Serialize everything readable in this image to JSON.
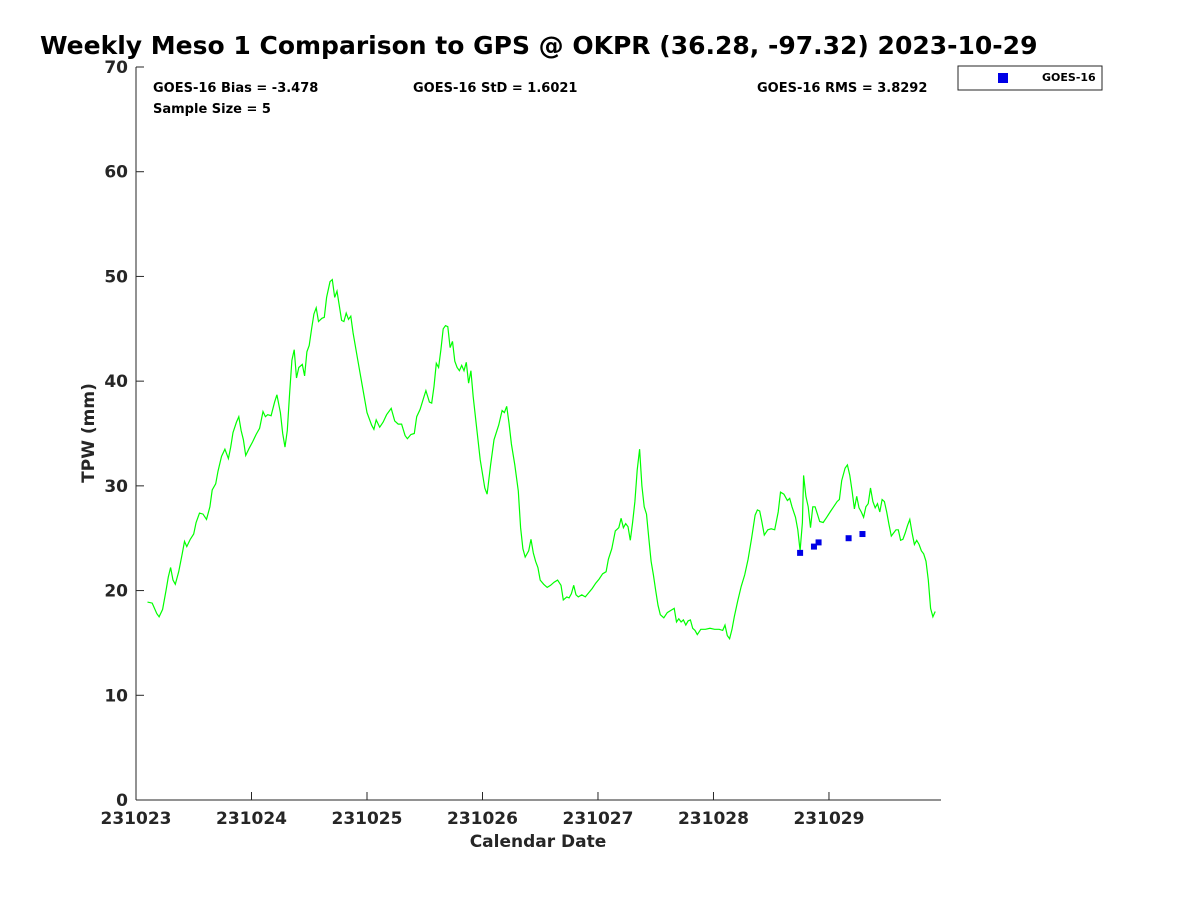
{
  "chart_data": {
    "type": "line",
    "title": "Weekly Meso 1 Comparison to GPS @ OKPR (36.28, -97.32) 2023-10-29",
    "xlabel": "Calendar Date",
    "ylabel": "TPW (mm)",
    "xlim": [
      0,
      6.97
    ],
    "ylim": [
      0,
      70
    ],
    "x_ticks": [
      {
        "value": 0,
        "label": "231023"
      },
      {
        "value": 1,
        "label": "231024"
      },
      {
        "value": 2,
        "label": "231025"
      },
      {
        "value": 3,
        "label": "231026"
      },
      {
        "value": 4,
        "label": "231027"
      },
      {
        "value": 5,
        "label": "231028"
      },
      {
        "value": 6,
        "label": "231029"
      }
    ],
    "y_ticks": [
      0,
      10,
      20,
      30,
      40,
      50,
      60,
      70
    ],
    "grid": false,
    "stats": {
      "bias": "GOES-16 Bias = -3.478",
      "std": "GOES-16 StD = 1.6021",
      "rms": "GOES-16 RMS = 3.8292",
      "sample": "Sample Size = 5"
    },
    "legend": {
      "position": "outside-top-right",
      "label": "GOES-16"
    },
    "series": [
      {
        "name": "GPS",
        "kind": "line",
        "color": "#00ff00",
        "points": [
          [
            0.1,
            18.9
          ],
          [
            0.14,
            18.8
          ],
          [
            0.18,
            17.8
          ],
          [
            0.2,
            17.5
          ],
          [
            0.23,
            18.2
          ],
          [
            0.26,
            20.0
          ],
          [
            0.28,
            21.3
          ],
          [
            0.3,
            22.2
          ],
          [
            0.32,
            21.0
          ],
          [
            0.34,
            20.6
          ],
          [
            0.37,
            21.8
          ],
          [
            0.4,
            23.5
          ],
          [
            0.42,
            24.7
          ],
          [
            0.44,
            24.2
          ],
          [
            0.47,
            24.9
          ],
          [
            0.5,
            25.4
          ],
          [
            0.52,
            26.5
          ],
          [
            0.55,
            27.4
          ],
          [
            0.58,
            27.3
          ],
          [
            0.61,
            26.8
          ],
          [
            0.64,
            28.0
          ],
          [
            0.66,
            29.6
          ],
          [
            0.69,
            30.2
          ],
          [
            0.71,
            31.4
          ],
          [
            0.74,
            32.8
          ],
          [
            0.77,
            33.5
          ],
          [
            0.8,
            32.6
          ],
          [
            0.82,
            33.7
          ],
          [
            0.84,
            35.1
          ],
          [
            0.87,
            36.1
          ],
          [
            0.89,
            36.6
          ],
          [
            0.91,
            35.3
          ],
          [
            0.93,
            34.4
          ],
          [
            0.95,
            32.9
          ],
          [
            0.98,
            33.6
          ],
          [
            1.01,
            34.2
          ],
          [
            1.04,
            34.9
          ],
          [
            1.07,
            35.5
          ],
          [
            1.1,
            37.1
          ],
          [
            1.12,
            36.6
          ],
          [
            1.14,
            36.8
          ],
          [
            1.17,
            36.7
          ],
          [
            1.2,
            38.0
          ],
          [
            1.22,
            38.7
          ],
          [
            1.25,
            37.0
          ],
          [
            1.27,
            35.0
          ],
          [
            1.29,
            33.7
          ],
          [
            1.31,
            35.3
          ],
          [
            1.33,
            38.8
          ],
          [
            1.35,
            42.0
          ],
          [
            1.37,
            43.0
          ],
          [
            1.39,
            40.3
          ],
          [
            1.41,
            41.3
          ],
          [
            1.44,
            41.6
          ],
          [
            1.46,
            40.5
          ],
          [
            1.48,
            42.8
          ],
          [
            1.5,
            43.4
          ],
          [
            1.52,
            45.0
          ],
          [
            1.54,
            46.4
          ],
          [
            1.56,
            47.0
          ],
          [
            1.58,
            45.7
          ],
          [
            1.61,
            46.0
          ],
          [
            1.63,
            46.1
          ],
          [
            1.65,
            48.0
          ],
          [
            1.68,
            49.5
          ],
          [
            1.7,
            49.7
          ],
          [
            1.72,
            48.0
          ],
          [
            1.74,
            48.6
          ],
          [
            1.76,
            47.2
          ],
          [
            1.78,
            45.8
          ],
          [
            1.8,
            45.7
          ],
          [
            1.82,
            46.5
          ],
          [
            1.84,
            45.9
          ],
          [
            1.86,
            46.2
          ],
          [
            1.88,
            44.6
          ],
          [
            1.92,
            42.0
          ],
          [
            1.96,
            39.5
          ],
          [
            2.0,
            37.0
          ],
          [
            2.04,
            35.8
          ],
          [
            2.06,
            35.4
          ],
          [
            2.08,
            36.3
          ],
          [
            2.11,
            35.6
          ],
          [
            2.14,
            36.1
          ],
          [
            2.17,
            36.8
          ],
          [
            2.21,
            37.4
          ],
          [
            2.24,
            36.2
          ],
          [
            2.27,
            35.9
          ],
          [
            2.3,
            35.9
          ],
          [
            2.33,
            34.8
          ],
          [
            2.35,
            34.5
          ],
          [
            2.38,
            34.9
          ],
          [
            2.41,
            35.0
          ],
          [
            2.43,
            36.6
          ],
          [
            2.46,
            37.3
          ],
          [
            2.49,
            38.4
          ],
          [
            2.51,
            39.1
          ],
          [
            2.54,
            38.0
          ],
          [
            2.56,
            37.9
          ],
          [
            2.58,
            39.5
          ],
          [
            2.6,
            41.7
          ],
          [
            2.62,
            41.3
          ],
          [
            2.64,
            43.0
          ],
          [
            2.66,
            45.0
          ],
          [
            2.68,
            45.3
          ],
          [
            2.7,
            45.2
          ],
          [
            2.72,
            43.2
          ],
          [
            2.74,
            43.8
          ],
          [
            2.76,
            41.9
          ],
          [
            2.78,
            41.3
          ],
          [
            2.8,
            41.0
          ],
          [
            2.82,
            41.5
          ],
          [
            2.84,
            41.0
          ],
          [
            2.86,
            41.8
          ],
          [
            2.88,
            39.8
          ],
          [
            2.9,
            41.0
          ],
          [
            2.92,
            38.5
          ],
          [
            2.95,
            35.5
          ],
          [
            2.98,
            32.5
          ],
          [
            3.02,
            29.8
          ],
          [
            3.04,
            29.2
          ],
          [
            3.07,
            32.0
          ],
          [
            3.1,
            34.4
          ],
          [
            3.14,
            35.8
          ],
          [
            3.17,
            37.2
          ],
          [
            3.19,
            37.0
          ],
          [
            3.21,
            37.6
          ],
          [
            3.23,
            36.0
          ],
          [
            3.25,
            34.0
          ],
          [
            3.28,
            32.0
          ],
          [
            3.31,
            29.5
          ],
          [
            3.33,
            26.0
          ],
          [
            3.35,
            24.0
          ],
          [
            3.37,
            23.2
          ],
          [
            3.4,
            23.8
          ],
          [
            3.42,
            24.9
          ],
          [
            3.44,
            23.6
          ],
          [
            3.46,
            22.8
          ],
          [
            3.48,
            22.2
          ],
          [
            3.5,
            21.0
          ],
          [
            3.53,
            20.6
          ],
          [
            3.56,
            20.3
          ],
          [
            3.59,
            20.5
          ],
          [
            3.62,
            20.8
          ],
          [
            3.65,
            21.0
          ],
          [
            3.68,
            20.5
          ],
          [
            3.7,
            19.1
          ],
          [
            3.73,
            19.4
          ],
          [
            3.75,
            19.3
          ],
          [
            3.77,
            19.7
          ],
          [
            3.79,
            20.5
          ],
          [
            3.81,
            19.6
          ],
          [
            3.83,
            19.4
          ],
          [
            3.86,
            19.6
          ],
          [
            3.89,
            19.4
          ],
          [
            3.92,
            19.8
          ],
          [
            3.95,
            20.2
          ],
          [
            3.98,
            20.7
          ],
          [
            4.01,
            21.1
          ],
          [
            4.04,
            21.6
          ],
          [
            4.07,
            21.8
          ],
          [
            4.09,
            23.0
          ],
          [
            4.12,
            24.0
          ],
          [
            4.15,
            25.7
          ],
          [
            4.18,
            26.0
          ],
          [
            4.2,
            26.9
          ],
          [
            4.22,
            26.0
          ],
          [
            4.24,
            26.4
          ],
          [
            4.26,
            26.1
          ],
          [
            4.28,
            24.8
          ],
          [
            4.3,
            26.5
          ],
          [
            4.32,
            28.5
          ],
          [
            4.34,
            31.5
          ],
          [
            4.36,
            33.5
          ],
          [
            4.38,
            30.0
          ],
          [
            4.4,
            28.0
          ],
          [
            4.42,
            27.3
          ],
          [
            4.44,
            25.0
          ],
          [
            4.46,
            22.8
          ],
          [
            4.48,
            21.5
          ],
          [
            4.5,
            20.0
          ],
          [
            4.52,
            18.6
          ],
          [
            4.54,
            17.7
          ],
          [
            4.57,
            17.4
          ],
          [
            4.6,
            17.9
          ],
          [
            4.63,
            18.1
          ],
          [
            4.66,
            18.3
          ],
          [
            4.68,
            17.0
          ],
          [
            4.7,
            17.3
          ],
          [
            4.72,
            17.0
          ],
          [
            4.74,
            17.2
          ],
          [
            4.76,
            16.7
          ],
          [
            4.78,
            17.1
          ],
          [
            4.8,
            17.2
          ],
          [
            4.82,
            16.4
          ],
          [
            4.84,
            16.2
          ],
          [
            4.86,
            15.8
          ],
          [
            4.89,
            16.3
          ],
          [
            4.93,
            16.3
          ],
          [
            4.97,
            16.4
          ],
          [
            5.01,
            16.3
          ],
          [
            5.05,
            16.3
          ],
          [
            5.08,
            16.2
          ],
          [
            5.1,
            16.7
          ],
          [
            5.12,
            15.7
          ],
          [
            5.14,
            15.4
          ],
          [
            5.16,
            16.3
          ],
          [
            5.18,
            17.5
          ],
          [
            5.21,
            19.0
          ],
          [
            5.24,
            20.4
          ],
          [
            5.27,
            21.5
          ],
          [
            5.3,
            23.0
          ],
          [
            5.33,
            25.0
          ],
          [
            5.36,
            27.2
          ],
          [
            5.38,
            27.7
          ],
          [
            5.4,
            27.6
          ],
          [
            5.42,
            26.5
          ],
          [
            5.44,
            25.3
          ],
          [
            5.47,
            25.8
          ],
          [
            5.5,
            25.9
          ],
          [
            5.53,
            25.8
          ],
          [
            5.56,
            27.5
          ],
          [
            5.58,
            29.4
          ],
          [
            5.61,
            29.2
          ],
          [
            5.64,
            28.6
          ],
          [
            5.66,
            28.8
          ],
          [
            5.68,
            28.0
          ],
          [
            5.71,
            27.0
          ],
          [
            5.73,
            25.8
          ],
          [
            5.75,
            23.8
          ],
          [
            5.77,
            26.5
          ],
          [
            5.78,
            31.0
          ],
          [
            5.8,
            29.0
          ],
          [
            5.82,
            28.0
          ],
          [
            5.84,
            26.0
          ],
          [
            5.86,
            28.0
          ],
          [
            5.88,
            28.0
          ],
          [
            5.9,
            27.3
          ],
          [
            5.92,
            26.6
          ],
          [
            5.95,
            26.5
          ],
          [
            5.98,
            27.0
          ],
          [
            6.01,
            27.5
          ],
          [
            6.04,
            28.0
          ],
          [
            6.07,
            28.5
          ],
          [
            6.09,
            28.7
          ],
          [
            6.11,
            30.5
          ],
          [
            6.14,
            31.7
          ],
          [
            6.16,
            32.0
          ],
          [
            6.18,
            31.0
          ],
          [
            6.2,
            29.5
          ],
          [
            6.22,
            27.8
          ],
          [
            6.24,
            29.0
          ],
          [
            6.26,
            27.9
          ],
          [
            6.28,
            27.5
          ],
          [
            6.3,
            27.0
          ],
          [
            6.32,
            28.0
          ],
          [
            6.34,
            28.3
          ],
          [
            6.36,
            29.8
          ],
          [
            6.38,
            28.5
          ],
          [
            6.4,
            27.9
          ],
          [
            6.42,
            28.3
          ],
          [
            6.44,
            27.5
          ],
          [
            6.46,
            28.7
          ],
          [
            6.48,
            28.5
          ],
          [
            6.5,
            27.5
          ],
          [
            6.52,
            26.3
          ],
          [
            6.54,
            25.2
          ],
          [
            6.56,
            25.5
          ],
          [
            6.58,
            25.8
          ],
          [
            6.6,
            25.8
          ],
          [
            6.62,
            24.8
          ],
          [
            6.64,
            24.9
          ],
          [
            6.66,
            25.5
          ],
          [
            6.68,
            26.2
          ],
          [
            6.7,
            26.8
          ],
          [
            6.72,
            25.5
          ],
          [
            6.74,
            24.4
          ],
          [
            6.76,
            24.8
          ],
          [
            6.78,
            24.4
          ],
          [
            6.8,
            23.8
          ],
          [
            6.82,
            23.5
          ],
          [
            6.84,
            22.8
          ],
          [
            6.86,
            21.0
          ],
          [
            6.88,
            18.3
          ],
          [
            6.9,
            17.5
          ],
          [
            6.92,
            18.0
          ]
        ]
      },
      {
        "name": "GOES-16",
        "kind": "scatter",
        "color": "#0000e6",
        "points": [
          [
            5.75,
            23.6
          ],
          [
            5.87,
            24.2
          ],
          [
            5.91,
            24.6
          ],
          [
            6.17,
            25.0
          ],
          [
            6.29,
            25.4
          ]
        ]
      }
    ]
  }
}
